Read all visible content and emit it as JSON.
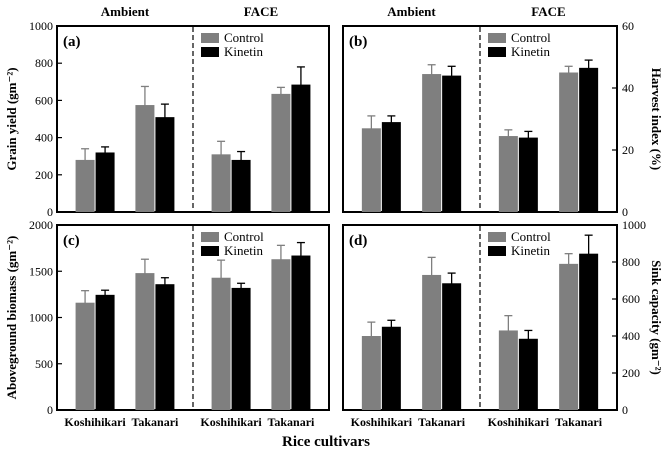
{
  "figure": {
    "x_label": "Rice cultivars",
    "group_headers": [
      "Ambient",
      "FACE",
      "Ambient",
      "FACE"
    ],
    "categories": [
      "Koshihikari",
      "Takanari",
      "Koshihikari",
      "Takanari"
    ],
    "legend": [
      "Control",
      "Kinetin"
    ],
    "colors": {
      "control": "#7f7f7f",
      "kinetin": "#000000"
    }
  },
  "chart_data": [
    {
      "type": "bar",
      "panel": "(a)",
      "ylabel": "Grain yield (gm⁻²)",
      "axis_side": "left",
      "ylim": [
        0,
        1000
      ],
      "yticks": [
        0,
        200,
        400,
        600,
        800,
        1000
      ],
      "groups": [
        "Ambient",
        "FACE"
      ],
      "categories": [
        "Koshihikari",
        "Takanari",
        "Koshihikari",
        "Takanari"
      ],
      "series": [
        {
          "name": "Control",
          "values": [
            280,
            575,
            310,
            635
          ],
          "errors": [
            60,
            100,
            70,
            35
          ]
        },
        {
          "name": "Kinetin",
          "values": [
            320,
            510,
            280,
            685
          ],
          "errors": [
            30,
            70,
            45,
            95
          ]
        }
      ]
    },
    {
      "type": "bar",
      "panel": "(b)",
      "ylabel": "Harvest index (%)",
      "axis_side": "right",
      "ylim": [
        0,
        60
      ],
      "yticks": [
        0,
        20,
        40,
        60
      ],
      "groups": [
        "Ambient",
        "FACE"
      ],
      "categories": [
        "Koshihikari",
        "Takanari",
        "Koshihikari",
        "Takanari"
      ],
      "series": [
        {
          "name": "Control",
          "values": [
            27,
            44.5,
            24.5,
            45
          ],
          "errors": [
            4,
            3,
            2,
            2
          ]
        },
        {
          "name": "Kinetin",
          "values": [
            29,
            44,
            24,
            46.5
          ],
          "errors": [
            2,
            3,
            2,
            2.5
          ]
        }
      ]
    },
    {
      "type": "bar",
      "panel": "(c)",
      "ylabel": "Aboveground biomass (gm⁻²)",
      "axis_side": "left",
      "ylim": [
        0,
        2000
      ],
      "yticks": [
        0,
        500,
        1000,
        1500,
        2000
      ],
      "groups": [
        "Ambient",
        "FACE"
      ],
      "categories": [
        "Koshihikari",
        "Takanari",
        "Koshihikari",
        "Takanari"
      ],
      "series": [
        {
          "name": "Control",
          "values": [
            1160,
            1480,
            1430,
            1630
          ],
          "errors": [
            130,
            150,
            190,
            150
          ]
        },
        {
          "name": "Kinetin",
          "values": [
            1245,
            1360,
            1320,
            1670
          ],
          "errors": [
            50,
            70,
            50,
            140
          ]
        }
      ]
    },
    {
      "type": "bar",
      "panel": "(d)",
      "ylabel": "Sink capacity (gm⁻²)",
      "axis_side": "right",
      "ylim": [
        0,
        1000
      ],
      "yticks": [
        0,
        200,
        400,
        600,
        800,
        1000
      ],
      "groups": [
        "Ambient",
        "FACE"
      ],
      "categories": [
        "Koshihikari",
        "Takanari",
        "Koshihikari",
        "Takanari"
      ],
      "series": [
        {
          "name": "Control",
          "values": [
            400,
            730,
            430,
            790
          ],
          "errors": [
            75,
            95,
            80,
            55
          ]
        },
        {
          "name": "Kinetin",
          "values": [
            450,
            685,
            385,
            845
          ],
          "errors": [
            35,
            55,
            45,
            100
          ]
        }
      ]
    }
  ]
}
